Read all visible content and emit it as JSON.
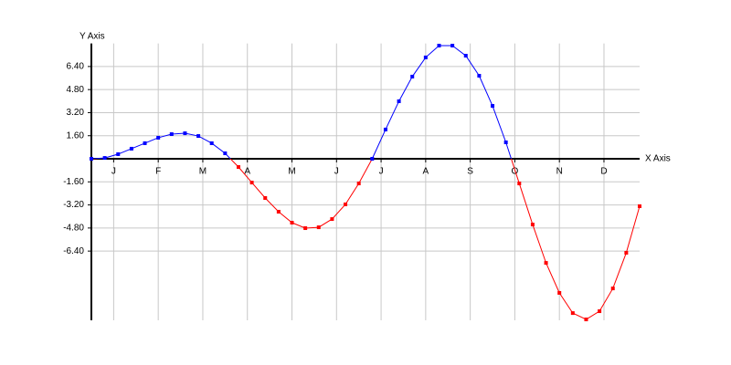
{
  "chart_data": {
    "type": "line",
    "x_label": "X Axis",
    "y_label": "Y Axis",
    "x": [
      0,
      0.3,
      0.6,
      0.9,
      1.2,
      1.5,
      1.8,
      2.1,
      2.4,
      2.7,
      3.0,
      3.3,
      3.6,
      3.9,
      4.2,
      4.5,
      4.8,
      5.1,
      5.4,
      5.7,
      6.0,
      6.3,
      6.6,
      6.9,
      7.2,
      7.5,
      7.8,
      8.1,
      8.4,
      8.7,
      9.0,
      9.3,
      9.6,
      9.9,
      10.2,
      10.5,
      10.8,
      11.1,
      11.4,
      11.7,
      12.0,
      12.3
    ],
    "values": [
      0,
      0.06,
      0.32,
      0.7,
      1.08,
      1.46,
      1.71,
      1.77,
      1.58,
      1.08,
      0.38,
      -0.57,
      -1.65,
      -2.72,
      -3.67,
      -4.43,
      -4.81,
      -4.75,
      -4.18,
      -3.16,
      -1.71,
      0,
      2.03,
      3.99,
      5.7,
      7.03,
      7.85,
      7.85,
      7.15,
      5.76,
      3.67,
      1.14,
      -1.71,
      -4.56,
      -7.22,
      -9.3,
      -10.7,
      -11.14,
      -10.57,
      -8.99,
      -6.52,
      -3.29
    ],
    "color_above": "#0000ff",
    "color_below": "#ff0000",
    "xlim": [
      0,
      12.3
    ],
    "xticks": [
      {
        "value": 0.5,
        "label": "J"
      },
      {
        "value": 1.5,
        "label": "F"
      },
      {
        "value": 2.5,
        "label": "M"
      },
      {
        "value": 3.5,
        "label": "A"
      },
      {
        "value": 4.5,
        "label": "M"
      },
      {
        "value": 5.5,
        "label": "J"
      },
      {
        "value": 6.5,
        "label": "J"
      },
      {
        "value": 7.5,
        "label": "A"
      },
      {
        "value": 8.5,
        "label": "S"
      },
      {
        "value": 9.5,
        "label": "O"
      },
      {
        "value": 10.5,
        "label": "N"
      },
      {
        "value": 11.5,
        "label": "D"
      }
    ],
    "ylim": [
      -11.2,
      8
    ],
    "yticks": [
      {
        "value": 6.4,
        "label": "6.40"
      },
      {
        "value": 4.8,
        "label": "4.80"
      },
      {
        "value": 3.2,
        "label": "3.20"
      },
      {
        "value": 1.6,
        "label": "1.60"
      },
      {
        "value": -1.6,
        "label": "-1.60"
      },
      {
        "value": -3.2,
        "label": "-3.20"
      },
      {
        "value": -4.8,
        "label": "-4.80"
      },
      {
        "value": -6.4,
        "label": "-6.40"
      }
    ],
    "grid": true
  }
}
